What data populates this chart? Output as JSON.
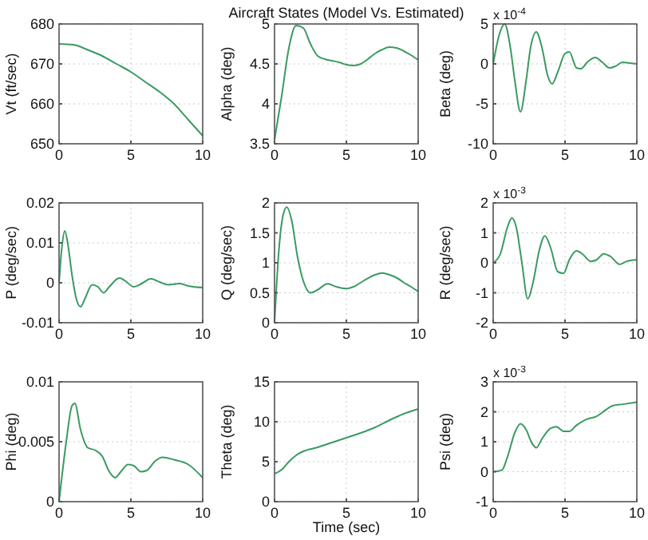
{
  "chart_data": [
    {
      "type": "line",
      "ylabel": "Vt (ft/sec)",
      "xlim": [
        0,
        10
      ],
      "xticks": [
        0,
        5,
        10
      ],
      "ylim": [
        650,
        680
      ],
      "yticks": [
        650,
        660,
        670,
        680
      ],
      "grid": true,
      "x": [
        0,
        1,
        2,
        3,
        4,
        5,
        6,
        7,
        8,
        9,
        10
      ],
      "series": [
        {
          "color": "#3a9a60",
          "values": [
            675,
            674.8,
            673.5,
            672,
            670,
            668,
            665.5,
            663,
            660,
            656,
            652
          ]
        }
      ]
    },
    {
      "type": "line",
      "title": "Aircraft States (Model Vs. Estimated)",
      "ylabel": "Alpha (deg)",
      "xlim": [
        0,
        10
      ],
      "xticks": [
        0,
        5,
        10
      ],
      "ylim": [
        3.5,
        5
      ],
      "yticks": [
        3.5,
        4,
        4.5,
        5
      ],
      "grid": true,
      "x": [
        0,
        0.5,
        1,
        1.5,
        2,
        2.5,
        3,
        3.5,
        4,
        4.5,
        5,
        5.5,
        6,
        6.5,
        7,
        7.5,
        8,
        8.5,
        9,
        9.5,
        10
      ],
      "series": [
        {
          "color": "#3a9a60",
          "values": [
            3.55,
            4.1,
            4.7,
            4.98,
            4.95,
            4.75,
            4.6,
            4.56,
            4.54,
            4.52,
            4.49,
            4.48,
            4.5,
            4.56,
            4.63,
            4.68,
            4.71,
            4.7,
            4.66,
            4.61,
            4.55
          ]
        }
      ]
    },
    {
      "type": "line",
      "ylabel": "Beta (deg)",
      "annotations": [
        "x 10$^{-4}$"
      ],
      "xlim": [
        0,
        10
      ],
      "xticks": [
        0,
        5,
        10
      ],
      "ylim": [
        -10,
        5
      ],
      "yticks": [
        -10,
        -5,
        0,
        5
      ],
      "grid": true,
      "x": [
        0,
        0.4,
        0.8,
        1.2,
        1.5,
        1.9,
        2.3,
        2.6,
        3,
        3.4,
        3.8,
        4.1,
        4.5,
        5,
        5.3,
        5.8,
        6.1,
        6.6,
        7.1,
        7.6,
        8.1,
        8.5,
        9,
        9.5,
        10
      ],
      "series": [
        {
          "color": "#3a9a60",
          "values": [
            0,
            3.5,
            5,
            2,
            -2,
            -6,
            -2,
            2,
            4,
            2,
            -1.5,
            -2.5,
            -1,
            1.3,
            1.5,
            -0.5,
            -0.6,
            0.3,
            0.8,
            0.2,
            -0.5,
            -0.3,
            0.2,
            0.1,
            0
          ]
        }
      ]
    },
    {
      "type": "line",
      "ylabel": "P (deg/sec)",
      "xlim": [
        0,
        10
      ],
      "xticks": [
        0,
        5,
        10
      ],
      "ylim": [
        -0.01,
        0.02
      ],
      "yticks": [
        -0.01,
        0,
        0.01,
        0.02
      ],
      "grid": true,
      "x": [
        0,
        0.2,
        0.4,
        0.6,
        0.9,
        1.2,
        1.5,
        1.8,
        2.3,
        2.7,
        3.1,
        3.5,
        4.2,
        4.6,
        5.2,
        5.6,
        6.4,
        7,
        7.6,
        8.4,
        9,
        10
      ],
      "series": [
        {
          "color": "#3a9a60",
          "values": [
            0,
            0.009,
            0.013,
            0.01,
            0.002,
            -0.004,
            -0.006,
            -0.004,
            -0.0005,
            -0.001,
            -0.0025,
            -0.001,
            0.0012,
            0.0005,
            -0.001,
            -0.0005,
            0.001,
            0.0002,
            -0.0005,
            -0.0002,
            -0.0008,
            -0.0012
          ]
        }
      ]
    },
    {
      "type": "line",
      "ylabel": "Q (deg/sec)",
      "xlim": [
        0,
        10
      ],
      "xticks": [
        0,
        5,
        10
      ],
      "ylim": [
        0,
        2
      ],
      "yticks": [
        0,
        0.5,
        1,
        1.5,
        2
      ],
      "grid": true,
      "x": [
        0,
        0.3,
        0.6,
        0.85,
        1.2,
        1.6,
        2,
        2.5,
        3,
        3.7,
        4.3,
        5,
        5.5,
        6.2,
        7,
        7.5,
        8,
        8.5,
        9,
        9.5,
        10
      ],
      "series": [
        {
          "color": "#3a9a60",
          "values": [
            0,
            1.2,
            1.8,
            1.93,
            1.7,
            1.1,
            0.7,
            0.5,
            0.55,
            0.65,
            0.6,
            0.57,
            0.6,
            0.7,
            0.8,
            0.83,
            0.8,
            0.75,
            0.67,
            0.6,
            0.52
          ]
        }
      ]
    },
    {
      "type": "line",
      "ylabel": "R (deg/sec)",
      "annotations": [
        "x 10$^{-3}$"
      ],
      "xlim": [
        0,
        10
      ],
      "xticks": [
        0,
        5,
        10
      ],
      "ylim": [
        -2,
        2
      ],
      "yticks": [
        -2,
        -1,
        0,
        1,
        2
      ],
      "grid": true,
      "x": [
        0,
        0.5,
        1,
        1.3,
        1.6,
        2,
        2.4,
        2.8,
        3.2,
        3.6,
        4,
        4.5,
        4.9,
        5.3,
        5.8,
        6.2,
        6.8,
        7.2,
        7.7,
        8.2,
        8.8,
        9.3,
        10
      ],
      "series": [
        {
          "color": "#3a9a60",
          "values": [
            0,
            0.3,
            1.2,
            1.5,
            1.2,
            0,
            -1.2,
            -0.6,
            0.4,
            0.9,
            0.5,
            -0.3,
            -0.35,
            0.1,
            0.4,
            0.3,
            0.05,
            0.1,
            0.3,
            0.2,
            -0.05,
            0.05,
            0.1
          ]
        }
      ]
    },
    {
      "type": "line",
      "ylabel": "Phi (deg)",
      "xlim": [
        0,
        10
      ],
      "xticks": [
        0,
        5,
        10
      ],
      "ylim": [
        0,
        0.01
      ],
      "yticks": [
        0,
        0.005,
        0.01
      ],
      "grid": true,
      "x": [
        0,
        0.5,
        0.9,
        1.1,
        1.5,
        2,
        2.5,
        3,
        3.5,
        3.9,
        4.3,
        4.8,
        5.2,
        5.7,
        6.1,
        6.7,
        7.2,
        8,
        9,
        10
      ],
      "series": [
        {
          "color": "#3a9a60",
          "values": [
            0,
            0.005,
            0.008,
            0.0082,
            0.006,
            0.0045,
            0.0043,
            0.0038,
            0.0025,
            0.002,
            0.0025,
            0.0031,
            0.003,
            0.0025,
            0.0026,
            0.0034,
            0.0037,
            0.0035,
            0.0031,
            0.002
          ]
        }
      ]
    },
    {
      "type": "line",
      "xlabel": "Time (sec)",
      "ylabel": "Theta (deg)",
      "xlim": [
        0,
        10
      ],
      "xticks": [
        0,
        5,
        10
      ],
      "ylim": [
        0,
        15
      ],
      "yticks": [
        0,
        5,
        10,
        15
      ],
      "grid": true,
      "x": [
        0,
        0.5,
        1,
        1.5,
        2,
        3,
        4,
        5,
        6,
        7,
        8,
        9,
        10
      ],
      "series": [
        {
          "color": "#3a9a60",
          "values": [
            3.5,
            4,
            5,
            5.8,
            6.3,
            6.8,
            7.4,
            8,
            8.6,
            9.3,
            10.2,
            11,
            11.6
          ]
        }
      ]
    },
    {
      "type": "line",
      "ylabel": "Psi (deg)",
      "annotations": [
        "x 10$^{-3}$"
      ],
      "xlim": [
        0,
        10
      ],
      "xticks": [
        0,
        5,
        10
      ],
      "ylim": [
        -1,
        3
      ],
      "yticks": [
        -1,
        0,
        1,
        2,
        3
      ],
      "grid": true,
      "x": [
        0,
        0.6,
        1,
        1.5,
        1.9,
        2.3,
        2.7,
        3,
        3.4,
        4,
        4.4,
        4.9,
        5.3,
        5.8,
        6.5,
        7.2,
        7.8,
        8.3,
        9,
        10
      ],
      "series": [
        {
          "color": "#3a9a60",
          "values": [
            0,
            0.05,
            0.5,
            1.3,
            1.6,
            1.4,
            0.95,
            0.8,
            1.1,
            1.45,
            1.5,
            1.35,
            1.35,
            1.55,
            1.75,
            1.85,
            2.05,
            2.2,
            2.25,
            2.32
          ]
        }
      ]
    }
  ]
}
